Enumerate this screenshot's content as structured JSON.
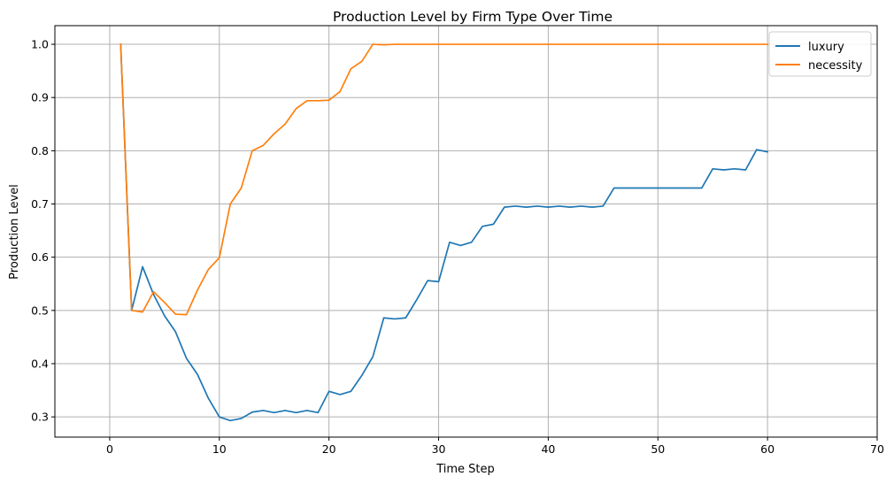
{
  "chart_data": {
    "type": "line",
    "title": "Production Level by Firm Type Over Time",
    "xlabel": "Time Step",
    "ylabel": "Production Level",
    "xlim": [
      -5,
      70
    ],
    "ylim": [
      0.262,
      1.035
    ],
    "xticks": [
      0,
      10,
      20,
      30,
      40,
      50,
      60,
      70
    ],
    "xtick_labels": [
      "0",
      "10",
      "20",
      "30",
      "40",
      "50",
      "60",
      "70"
    ],
    "yticks": [
      0.3,
      0.4,
      0.5,
      0.6,
      0.7,
      0.8,
      0.9,
      1.0
    ],
    "ytick_labels": [
      "0.3",
      "0.4",
      "0.5",
      "0.6",
      "0.7",
      "0.8",
      "0.9",
      "1.0"
    ],
    "grid": true,
    "legend_position": "top-right",
    "x": [
      1,
      2,
      3,
      4,
      5,
      6,
      7,
      8,
      9,
      10,
      11,
      12,
      13,
      14,
      15,
      16,
      17,
      18,
      19,
      20,
      21,
      22,
      23,
      24,
      25,
      26,
      27,
      28,
      29,
      30,
      31,
      32,
      33,
      34,
      35,
      36,
      37,
      38,
      39,
      40,
      41,
      42,
      43,
      44,
      45,
      46,
      47,
      48,
      49,
      50,
      51,
      52,
      53,
      54,
      55,
      56,
      57,
      58,
      59,
      60
    ],
    "series": [
      {
        "name": "luxury",
        "color": "#1f77b4",
        "values": [
          1.0,
          0.5,
          0.582,
          0.53,
          0.49,
          0.46,
          0.41,
          0.38,
          0.335,
          0.3,
          0.293,
          0.297,
          0.309,
          0.312,
          0.308,
          0.312,
          0.308,
          0.312,
          0.308,
          0.348,
          0.342,
          0.348,
          0.378,
          0.413,
          0.486,
          0.484,
          0.486,
          0.52,
          0.556,
          0.554,
          0.628,
          0.622,
          0.628,
          0.658,
          0.662,
          0.694,
          0.696,
          0.694,
          0.696,
          0.694,
          0.696,
          0.694,
          0.696,
          0.694,
          0.696,
          0.73,
          0.73,
          0.73,
          0.73,
          0.73,
          0.73,
          0.73,
          0.73,
          0.73,
          0.766,
          0.764,
          0.766,
          0.764,
          0.802,
          0.798
        ]
      },
      {
        "name": "necessity",
        "color": "#ff7f0e",
        "values": [
          1.0,
          0.5,
          0.497,
          0.535,
          0.515,
          0.493,
          0.492,
          0.538,
          0.577,
          0.599,
          0.7,
          0.73,
          0.8,
          0.81,
          0.832,
          0.85,
          0.879,
          0.894,
          0.894,
          0.895,
          0.911,
          0.954,
          0.968,
          1.0,
          0.999,
          1.0,
          1.0,
          1.0,
          1.0,
          1.0,
          1.0,
          1.0,
          1.0,
          1.0,
          1.0,
          1.0,
          1.0,
          1.0,
          1.0,
          1.0,
          1.0,
          1.0,
          1.0,
          1.0,
          1.0,
          1.0,
          1.0,
          1.0,
          1.0,
          1.0,
          1.0,
          1.0,
          1.0,
          1.0,
          1.0,
          1.0,
          1.0,
          1.0,
          1.0,
          1.0
        ]
      }
    ]
  }
}
